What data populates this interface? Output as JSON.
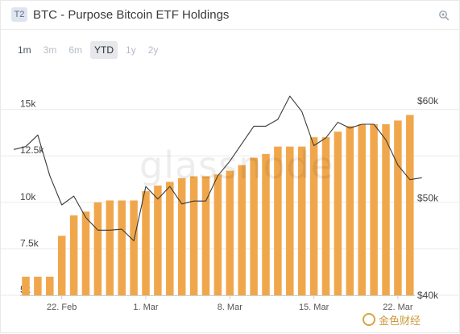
{
  "header": {
    "tier_badge": "T2",
    "title": "BTC - Purpose Bitcoin ETF Holdings",
    "settings_icon": "zoom-gear-icon"
  },
  "range_buttons": [
    {
      "label": "1m",
      "enabled": true,
      "active": false
    },
    {
      "label": "3m",
      "enabled": false,
      "active": false
    },
    {
      "label": "6m",
      "enabled": false,
      "active": false
    },
    {
      "label": "YTD",
      "enabled": true,
      "active": true
    },
    {
      "label": "1y",
      "enabled": false,
      "active": false
    },
    {
      "label": "2y",
      "enabled": false,
      "active": false
    }
  ],
  "watermark": "glassnode",
  "source_logo": {
    "text": "金色财经",
    "icon": "coin-logo-icon"
  },
  "chart_data": {
    "type": "bar",
    "title": "BTC - Purpose Bitcoin ETF Holdings",
    "grid": true,
    "left_axis": {
      "ticks": [
        5000,
        7500,
        10000,
        12500,
        15000
      ],
      "tick_labels": [
        "5k",
        "7.5k",
        "10k",
        "12.5k",
        "15k"
      ],
      "ylim": [
        5000,
        16500
      ]
    },
    "right_axis": {
      "ticks": [
        40000,
        50000,
        60000
      ],
      "tick_labels": [
        "$40k",
        "$50k",
        "$60k"
      ],
      "ylim": [
        40000,
        62000
      ]
    },
    "x_tick_labels": [
      {
        "label": "22. Feb",
        "index": 3
      },
      {
        "label": "1. Mar",
        "index": 10
      },
      {
        "label": "8. Mar",
        "index": 17
      },
      {
        "label": "15. Mar",
        "index": 24
      },
      {
        "label": "22. Mar",
        "index": 31
      }
    ],
    "series": [
      {
        "kind": "bar",
        "axis": "left",
        "color": "#f0a74c",
        "values": [
          6000,
          6000,
          6000,
          8200,
          9300,
          9500,
          10000,
          10100,
          10100,
          10100,
          10600,
          10900,
          11100,
          11300,
          11400,
          11400,
          11500,
          11700,
          12000,
          12400,
          12600,
          13000,
          13000,
          13000,
          13500,
          13500,
          13800,
          14100,
          14200,
          14200,
          14200,
          14400,
          14700
        ]
      },
      {
        "kind": "line",
        "axis": "right",
        "color": "#3a3a3a",
        "x": [
          -1,
          0,
          1,
          2,
          3,
          4,
          5,
          6,
          7,
          8,
          9,
          10,
          11,
          12,
          13,
          14,
          15,
          16,
          17,
          18,
          19,
          20,
          21,
          22,
          23,
          24,
          25,
          26,
          27,
          28,
          29,
          30,
          31,
          32,
          33
        ],
        "values": [
          55000,
          55300,
          56500,
          52300,
          49300,
          50200,
          48000,
          46700,
          46700,
          46800,
          45600,
          51200,
          49900,
          51200,
          49400,
          49700,
          49700,
          52300,
          53800,
          55600,
          57400,
          57400,
          58100,
          60500,
          58900,
          55400,
          56200,
          57800,
          57200,
          57600,
          57600,
          56000,
          53400,
          51900,
          52100
        ]
      }
    ]
  }
}
